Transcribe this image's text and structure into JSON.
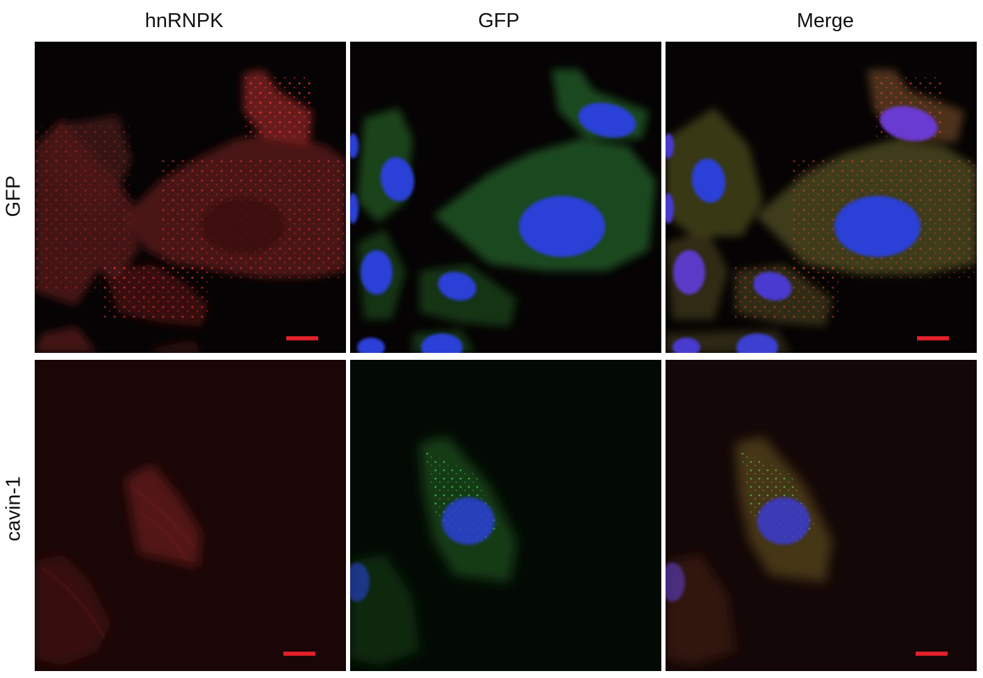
{
  "figure": {
    "columns": [
      "hnRNPK",
      "GFP",
      "Merge"
    ],
    "rows": [
      "GFP",
      "cavin-1"
    ],
    "colors": {
      "background": "#ffffff",
      "panel_background": "#050303",
      "hnRNPK_channel": "#d42020",
      "GFP_channel": "#2e9a38",
      "DAPI_channel": "#2a3fd6",
      "scalebar": "#e0202a"
    },
    "panels": [
      {
        "row": "GFP",
        "column": "hnRNPK",
        "channels": [
          "red"
        ]
      },
      {
        "row": "GFP",
        "column": "GFP",
        "channels": [
          "green",
          "blue"
        ]
      },
      {
        "row": "GFP",
        "column": "Merge",
        "channels": [
          "red",
          "green",
          "blue"
        ]
      },
      {
        "row": "cavin-1",
        "column": "hnRNPK",
        "channels": [
          "red"
        ]
      },
      {
        "row": "cavin-1",
        "column": "GFP",
        "channels": [
          "green",
          "blue"
        ]
      },
      {
        "row": "cavin-1",
        "column": "Merge",
        "channels": [
          "red",
          "green",
          "blue"
        ]
      }
    ]
  }
}
